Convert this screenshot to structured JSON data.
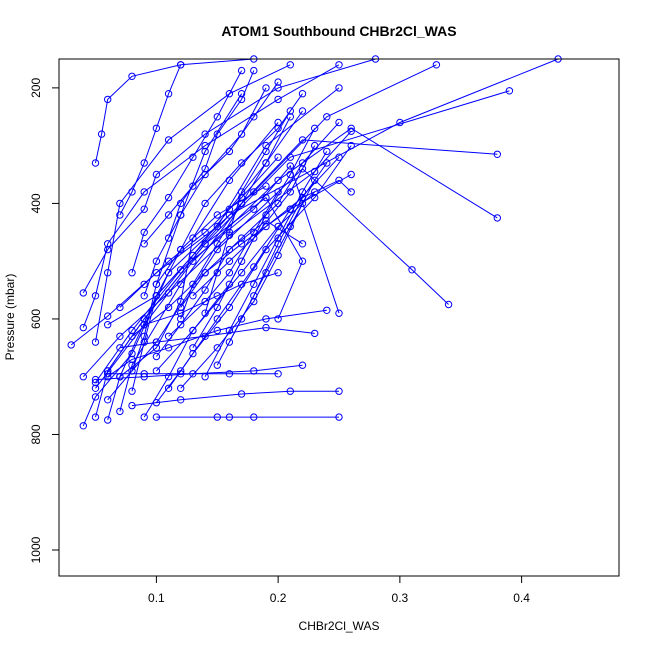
{
  "chart_data": {
    "type": "line",
    "title": "ATOM1 Southbound CHBr2Cl_WAS",
    "xlabel": "CHBr2Cl_WAS",
    "ylabel": "Pressure (mbar)",
    "xlim": [
      0.02,
      0.48
    ],
    "ylim": [
      1045,
      150
    ],
    "y_reversed": true,
    "xticks": [
      0.1,
      0.2,
      0.3,
      0.4
    ],
    "xtick_labels": [
      "0.1",
      "0.2",
      "0.3",
      "0.4"
    ],
    "yticks": [
      200,
      400,
      600,
      800,
      1000
    ],
    "ytick_labels": [
      "200",
      "400",
      "600",
      "800",
      "1000"
    ],
    "grid": false,
    "marker": "open-circle",
    "series_color": "#0000ff",
    "series": [
      {
        "x": [
          0.06,
          0.07,
          0.1,
          0.16,
          0.3,
          0.43
        ],
        "y": [
          775,
          700,
          560,
          420,
          260,
          150
        ]
      },
      {
        "x": [
          0.04,
          0.05,
          0.08,
          0.11,
          0.18,
          0.24,
          0.33
        ],
        "y": [
          785,
          735,
          660,
          520,
          380,
          250,
          160
        ]
      },
      {
        "x": [
          0.05,
          0.06,
          0.09,
          0.14,
          0.21,
          0.39
        ],
        "y": [
          770,
          690,
          600,
          470,
          320,
          205
        ]
      },
      {
        "x": [
          0.07,
          0.08,
          0.12,
          0.17,
          0.22,
          0.38
        ],
        "y": [
          760,
          680,
          540,
          400,
          290,
          315
        ]
      },
      {
        "x": [
          0.05,
          0.09,
          0.13,
          0.2,
          0.26,
          0.38
        ],
        "y": [
          720,
          610,
          500,
          360,
          270,
          425
        ]
      },
      {
        "x": [
          0.06,
          0.1,
          0.15,
          0.22,
          0.31,
          0.34
        ],
        "y": [
          740,
          640,
          480,
          340,
          515,
          575
        ]
      },
      {
        "x": [
          0.03,
          0.06,
          0.1,
          0.15,
          0.19,
          0.25
        ],
        "y": [
          645,
          595,
          520,
          440,
          300,
          200
        ]
      },
      {
        "x": [
          0.04,
          0.07,
          0.11,
          0.16,
          0.23,
          0.26
        ],
        "y": [
          700,
          630,
          555,
          455,
          345,
          275
        ]
      },
      {
        "x": [
          0.05,
          0.08,
          0.12,
          0.18,
          0.21,
          0.25
        ],
        "y": [
          710,
          620,
          515,
          410,
          335,
          590
        ]
      },
      {
        "x": [
          0.06,
          0.09,
          0.14,
          0.19,
          0.22,
          0.2
        ],
        "y": [
          690,
          600,
          470,
          390,
          500,
          600
        ]
      },
      {
        "x": [
          0.04,
          0.05,
          0.06,
          0.09,
          0.14,
          0.2,
          0.25
        ],
        "y": [
          615,
          560,
          470,
          380,
          300,
          220,
          160
        ]
      },
      {
        "x": [
          0.05,
          0.06,
          0.07,
          0.11,
          0.16,
          0.21
        ],
        "y": [
          640,
          520,
          400,
          290,
          210,
          160
        ]
      },
      {
        "x": [
          0.05,
          0.055,
          0.06,
          0.08,
          0.12,
          0.18
        ],
        "y": [
          330,
          280,
          220,
          180,
          160,
          150
        ]
      },
      {
        "x": [
          0.04,
          0.06,
          0.09,
          0.1,
          0.14,
          0.2,
          0.28
        ],
        "y": [
          555,
          480,
          410,
          350,
          280,
          200,
          150
        ]
      },
      {
        "x": [
          0.08,
          0.09,
          0.1,
          0.12,
          0.15,
          0.19
        ],
        "y": [
          725,
          640,
          560,
          480,
          420,
          370
        ]
      },
      {
        "x": [
          0.09,
          0.11,
          0.13,
          0.17,
          0.2,
          0.23
        ],
        "y": [
          770,
          700,
          620,
          520,
          440,
          380
        ]
      },
      {
        "x": [
          0.1,
          0.12,
          0.15,
          0.18,
          0.21,
          0.25
        ],
        "y": [
          745,
          690,
          600,
          510,
          410,
          320
        ]
      },
      {
        "x": [
          0.11,
          0.13,
          0.16,
          0.19,
          0.23,
          0.26
        ],
        "y": [
          720,
          660,
          580,
          480,
          390,
          300
        ]
      },
      {
        "x": [
          0.07,
          0.1,
          0.12,
          0.13,
          0.16,
          0.2
        ],
        "y": [
          700,
          650,
          570,
          460,
          360,
          260
        ]
      },
      {
        "x": [
          0.08,
          0.09,
          0.1,
          0.12,
          0.14,
          0.17
        ],
        "y": [
          690,
          630,
          540,
          420,
          310,
          210
        ]
      },
      {
        "x": [
          0.06,
          0.08,
          0.11,
          0.15,
          0.19,
          0.24
        ],
        "y": [
          700,
          670,
          650,
          620,
          600,
          585
        ]
      },
      {
        "x": [
          0.07,
          0.1,
          0.14,
          0.19,
          0.23
        ],
        "y": [
          650,
          640,
          630,
          615,
          625
        ]
      },
      {
        "x": [
          0.05,
          0.09,
          0.13,
          0.18,
          0.22
        ],
        "y": [
          705,
          700,
          695,
          690,
          680
        ]
      },
      {
        "x": [
          0.08,
          0.12,
          0.17,
          0.21,
          0.25
        ],
        "y": [
          750,
          740,
          730,
          725,
          725
        ]
      },
      {
        "x": [
          0.1,
          0.15,
          0.16,
          0.18,
          0.25
        ],
        "y": [
          770,
          770,
          770,
          770,
          770
        ]
      },
      {
        "x": [
          0.06,
          0.09,
          0.12,
          0.16,
          0.2
        ],
        "y": [
          695,
          695,
          695,
          695,
          695
        ]
      },
      {
        "x": [
          0.09,
          0.12,
          0.15,
          0.17,
          0.2
        ],
        "y": [
          610,
          590,
          560,
          540,
          520
        ]
      },
      {
        "x": [
          0.1,
          0.12,
          0.14,
          0.16,
          0.19,
          0.22
        ],
        "y": [
          665,
          610,
          550,
          480,
          430,
          470
        ]
      },
      {
        "x": [
          0.11,
          0.14,
          0.16,
          0.18,
          0.2
        ],
        "y": [
          630,
          570,
          520,
          450,
          380
        ]
      },
      {
        "x": [
          0.12,
          0.13,
          0.15,
          0.17,
          0.19,
          0.21
        ],
        "y": [
          600,
          540,
          470,
          400,
          330,
          250
        ]
      },
      {
        "x": [
          0.07,
          0.08,
          0.09,
          0.1,
          0.11,
          0.12
        ],
        "y": [
          420,
          380,
          330,
          270,
          210,
          160
        ]
      },
      {
        "x": [
          0.08,
          0.09,
          0.11,
          0.13,
          0.15,
          0.17
        ],
        "y": [
          520,
          450,
          390,
          320,
          250,
          170
        ]
      },
      {
        "x": [
          0.09,
          0.1,
          0.12,
          0.14,
          0.17,
          0.19
        ],
        "y": [
          560,
          500,
          420,
          350,
          280,
          200
        ]
      },
      {
        "x": [
          0.13,
          0.15,
          0.17,
          0.19,
          0.21,
          0.23
        ],
        "y": [
          650,
          580,
          500,
          420,
          350,
          270
        ]
      },
      {
        "x": [
          0.14,
          0.16,
          0.18,
          0.2,
          0.22,
          0.24
        ],
        "y": [
          700,
          620,
          540,
          460,
          380,
          310
        ]
      },
      {
        "x": [
          0.15,
          0.17,
          0.19,
          0.21,
          0.23
        ],
        "y": [
          680,
          600,
          520,
          440,
          360
        ]
      },
      {
        "x": [
          0.12,
          0.14,
          0.17,
          0.2,
          0.22,
          0.25
        ],
        "y": [
          580,
          520,
          460,
          400,
          330,
          260
        ]
      },
      {
        "x": [
          0.06,
          0.1,
          0.13,
          0.16,
          0.19,
          0.22
        ],
        "y": [
          610,
          560,
          490,
          410,
          330,
          240
        ]
      },
      {
        "x": [
          0.09,
          0.11,
          0.13,
          0.16,
          0.18,
          0.2
        ],
        "y": [
          470,
          420,
          370,
          310,
          250,
          190
        ]
      },
      {
        "x": [
          0.1,
          0.12,
          0.14,
          0.17,
          0.2,
          0.22
        ],
        "y": [
          540,
          480,
          400,
          330,
          270,
          210
        ]
      },
      {
        "x": [
          0.11,
          0.12,
          0.14,
          0.15,
          0.17,
          0.18
        ],
        "y": [
          460,
          400,
          340,
          280,
          220,
          170
        ]
      },
      {
        "x": [
          0.08,
          0.11,
          0.14,
          0.17,
          0.21,
          0.26
        ],
        "y": [
          630,
          580,
          520,
          470,
          410,
          350
        ]
      },
      {
        "x": [
          0.13,
          0.16,
          0.19,
          0.22,
          0.25,
          0.26
        ],
        "y": [
          560,
          500,
          440,
          390,
          360,
          380
        ]
      },
      {
        "x": [
          0.07,
          0.09,
          0.11,
          0.14,
          0.17,
          0.2
        ],
        "y": [
          580,
          540,
          500,
          450,
          390,
          320
        ]
      },
      {
        "x": [
          0.16,
          0.18,
          0.2,
          0.22,
          0.24
        ],
        "y": [
          640,
          560,
          470,
          390,
          330
        ]
      },
      {
        "x": [
          0.1,
          0.13,
          0.16,
          0.18,
          0.21,
          0.23
        ],
        "y": [
          690,
          620,
          540,
          460,
          380,
          300
        ]
      },
      {
        "x": [
          0.12,
          0.15,
          0.18,
          0.2,
          0.22
        ],
        "y": [
          720,
          650,
          570,
          490,
          400
        ]
      },
      {
        "x": [
          0.14,
          0.15,
          0.16,
          0.17,
          0.19,
          0.21
        ],
        "y": [
          590,
          520,
          450,
          380,
          310,
          240
        ]
      }
    ]
  }
}
